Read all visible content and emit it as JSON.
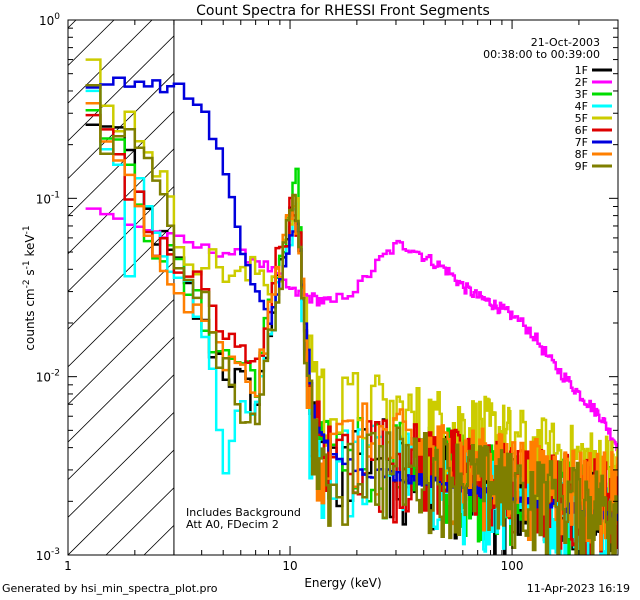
{
  "chart_data": {
    "type": "line",
    "title": "Count Spectra for RHESSI Front Segments",
    "xlabel": "Energy (keV)",
    "ylabel_parts": [
      "counts cm",
      "-2",
      " s",
      "-1",
      " keV",
      "-1"
    ],
    "xscale": "log",
    "yscale": "log",
    "xlim": [
      1,
      300
    ],
    "ylim": [
      0.001,
      1
    ],
    "x_ticks": [
      {
        "v": 1,
        "label": "1"
      },
      {
        "v": 10,
        "label": "10"
      },
      {
        "v": 100,
        "label": "100"
      }
    ],
    "y_ticks": [
      {
        "v": 0.001,
        "b": "10",
        "e": "-3"
      },
      {
        "v": 0.01,
        "b": "10",
        "e": "-2"
      },
      {
        "v": 0.1,
        "b": "10",
        "e": "-1"
      },
      {
        "v": 1,
        "b": "10",
        "e": "0"
      }
    ],
    "date": "21-Oct-2003",
    "time_range": "00:38:00 to 00:39:00",
    "annotations": [
      "Includes Background",
      "Att A0, FDecim 2"
    ],
    "hatch_region_kev": [
      1,
      3
    ],
    "series": [
      {
        "name": "1F",
        "color": "#000000"
      },
      {
        "name": "2F",
        "color": "#ff00ff"
      },
      {
        "name": "3F",
        "color": "#00dd00"
      },
      {
        "name": "4F",
        "color": "#00ffff"
      },
      {
        "name": "5F",
        "color": "#cccc00"
      },
      {
        "name": "6F",
        "color": "#dd0000"
      },
      {
        "name": "7F",
        "color": "#0000dd"
      },
      {
        "name": "8F",
        "color": "#ff7f00"
      },
      {
        "name": "9F",
        "color": "#7f7f00"
      }
    ],
    "series_profiles": {
      "2F": [
        [
          1.2,
          0.085
        ],
        [
          1.5,
          0.078
        ],
        [
          2,
          0.07
        ],
        [
          3,
          0.058
        ],
        [
          4,
          0.052
        ],
        [
          5,
          0.05
        ],
        [
          6,
          0.048
        ],
        [
          7,
          0.045
        ],
        [
          8,
          0.04
        ],
        [
          9,
          0.035
        ],
        [
          10,
          0.03
        ],
        [
          12,
          0.028
        ],
        [
          15,
          0.026
        ],
        [
          20,
          0.032
        ],
        [
          25,
          0.045
        ],
        [
          30,
          0.055
        ],
        [
          35,
          0.053
        ],
        [
          40,
          0.047
        ],
        [
          50,
          0.04
        ],
        [
          60,
          0.032
        ],
        [
          70,
          0.028
        ],
        [
          80,
          0.026
        ],
        [
          100,
          0.022
        ],
        [
          120,
          0.018
        ],
        [
          150,
          0.012
        ],
        [
          200,
          0.008
        ],
        [
          250,
          0.006
        ],
        [
          300,
          0.004
        ]
      ],
      "7F": [
        [
          1.2,
          0.4
        ],
        [
          1.5,
          0.47
        ],
        [
          2,
          0.45
        ],
        [
          2.5,
          0.43
        ],
        [
          3,
          0.41
        ],
        [
          3.5,
          0.36
        ],
        [
          4,
          0.3
        ],
        [
          4.5,
          0.2
        ],
        [
          5,
          0.14
        ],
        [
          5.5,
          0.08
        ],
        [
          6,
          0.045
        ],
        [
          7,
          0.03
        ],
        [
          8,
          0.02
        ],
        [
          9,
          0.035
        ],
        [
          10,
          0.065
        ],
        [
          10.5,
          0.075
        ],
        [
          11,
          0.045
        ],
        [
          12,
          0.012
        ],
        [
          13,
          0.005
        ],
        [
          15,
          0.004
        ],
        [
          20,
          0.003
        ],
        [
          30,
          0.0028
        ],
        [
          50,
          0.0025
        ],
        [
          80,
          0.0022
        ],
        [
          120,
          0.002
        ],
        [
          200,
          0.0018
        ],
        [
          300,
          0.0016
        ]
      ],
      "1F": [
        [
          1.2,
          0.24
        ],
        [
          1.5,
          0.3
        ],
        [
          2,
          0.1
        ],
        [
          2.5,
          0.06
        ],
        [
          3,
          0.04
        ],
        [
          4,
          0.018
        ],
        [
          5,
          0.011
        ],
        [
          6,
          0.009
        ],
        [
          7,
          0.007
        ],
        [
          8,
          0.02
        ],
        [
          9,
          0.04
        ],
        [
          10,
          0.08
        ],
        [
          10.5,
          0.1
        ],
        [
          11,
          0.05
        ],
        [
          12,
          0.006
        ],
        [
          14,
          0.0025
        ],
        [
          20,
          0.0035
        ],
        [
          30,
          0.003
        ],
        [
          50,
          0.0025
        ],
        [
          80,
          0.002
        ],
        [
          150,
          0.0018
        ],
        [
          300,
          0.0015
        ]
      ],
      "3F": [
        [
          1.2,
          0.26
        ],
        [
          1.5,
          0.28
        ],
        [
          2,
          0.08
        ],
        [
          2.5,
          0.055
        ],
        [
          3,
          0.04
        ],
        [
          4,
          0.02
        ],
        [
          5,
          0.013
        ],
        [
          6,
          0.012
        ],
        [
          7,
          0.01
        ],
        [
          8,
          0.025
        ],
        [
          9,
          0.05
        ],
        [
          10,
          0.1
        ],
        [
          10.5,
          0.15
        ],
        [
          11,
          0.06
        ],
        [
          12,
          0.006
        ],
        [
          14,
          0.003
        ],
        [
          20,
          0.0035
        ],
        [
          30,
          0.003
        ],
        [
          50,
          0.0028
        ],
        [
          80,
          0.0022
        ],
        [
          150,
          0.002
        ],
        [
          300,
          0.0016
        ]
      ],
      "4F": [
        [
          1.2,
          0.33
        ],
        [
          1.5,
          0.22
        ],
        [
          1.8,
          0.045
        ],
        [
          2,
          0.12
        ],
        [
          2.5,
          0.045
        ],
        [
          3,
          0.04
        ],
        [
          4,
          0.015
        ],
        [
          4.5,
          0.008
        ],
        [
          5,
          0.003
        ],
        [
          6,
          0.007
        ],
        [
          7,
          0.006
        ],
        [
          8,
          0.018
        ],
        [
          9,
          0.035
        ],
        [
          10,
          0.07
        ],
        [
          10.5,
          0.09
        ],
        [
          11,
          0.04
        ],
        [
          12,
          0.005
        ],
        [
          14,
          0.0025
        ],
        [
          20,
          0.003
        ],
        [
          30,
          0.0028
        ],
        [
          50,
          0.0022
        ],
        [
          100,
          0.002
        ],
        [
          300,
          0.0015
        ]
      ],
      "5F": [
        [
          1.2,
          0.55
        ],
        [
          1.5,
          0.32
        ],
        [
          2,
          0.25
        ],
        [
          2.5,
          0.15
        ],
        [
          3,
          0.06
        ],
        [
          4,
          0.045
        ],
        [
          5,
          0.04
        ],
        [
          6,
          0.035
        ],
        [
          7,
          0.04
        ],
        [
          8,
          0.035
        ],
        [
          9,
          0.045
        ],
        [
          10,
          0.085
        ],
        [
          10.5,
          0.09
        ],
        [
          11,
          0.05
        ],
        [
          12,
          0.015
        ],
        [
          13,
          0.008
        ],
        [
          15,
          0.005
        ],
        [
          20,
          0.006
        ],
        [
          30,
          0.005
        ],
        [
          50,
          0.0045
        ],
        [
          80,
          0.004
        ],
        [
          150,
          0.003
        ],
        [
          300,
          0.0025
        ]
      ],
      "6F": [
        [
          1.2,
          0.28
        ],
        [
          1.5,
          0.22
        ],
        [
          2,
          0.09
        ],
        [
          2.5,
          0.05
        ],
        [
          3,
          0.045
        ],
        [
          4,
          0.03
        ],
        [
          5,
          0.016
        ],
        [
          6,
          0.013
        ],
        [
          7,
          0.011
        ],
        [
          8,
          0.03
        ],
        [
          9,
          0.055
        ],
        [
          10,
          0.085
        ],
        [
          10.5,
          0.09
        ],
        [
          11,
          0.05
        ],
        [
          12,
          0.007
        ],
        [
          14,
          0.003
        ],
        [
          20,
          0.0035
        ],
        [
          30,
          0.003
        ],
        [
          50,
          0.0028
        ],
        [
          100,
          0.0022
        ],
        [
          300,
          0.0018
        ]
      ],
      "8F": [
        [
          1.2,
          0.31
        ],
        [
          1.5,
          0.26
        ],
        [
          2,
          0.08
        ],
        [
          2.5,
          0.038
        ],
        [
          3,
          0.03
        ],
        [
          4,
          0.018
        ],
        [
          5,
          0.012
        ],
        [
          6,
          0.01
        ],
        [
          7,
          0.009
        ],
        [
          8,
          0.022
        ],
        [
          9,
          0.05
        ],
        [
          10,
          0.085
        ],
        [
          10.5,
          0.09
        ],
        [
          11,
          0.05
        ],
        [
          12,
          0.006
        ],
        [
          14,
          0.003
        ],
        [
          20,
          0.0038
        ],
        [
          30,
          0.0035
        ],
        [
          50,
          0.003
        ],
        [
          100,
          0.0025
        ],
        [
          300,
          0.002
        ]
      ],
      "9F": [
        [
          1.2,
          0.38
        ],
        [
          1.5,
          0.19
        ],
        [
          2,
          0.2
        ],
        [
          2.5,
          0.1
        ],
        [
          3,
          0.05
        ],
        [
          4,
          0.025
        ],
        [
          5,
          0.01
        ],
        [
          6,
          0.006
        ],
        [
          7,
          0.005
        ],
        [
          8,
          0.018
        ],
        [
          9,
          0.04
        ],
        [
          10,
          0.08
        ],
        [
          10.5,
          0.09
        ],
        [
          11,
          0.05
        ],
        [
          12,
          0.007
        ],
        [
          14,
          0.002
        ],
        [
          20,
          0.003
        ],
        [
          30,
          0.0028
        ],
        [
          50,
          0.0025
        ],
        [
          100,
          0.002
        ],
        [
          300,
          0.0016
        ]
      ]
    }
  },
  "footer": {
    "generated_by": "Generated by hsi_min_spectra_plot.pro",
    "timestamp": "11-Apr-2023 16:19"
  }
}
